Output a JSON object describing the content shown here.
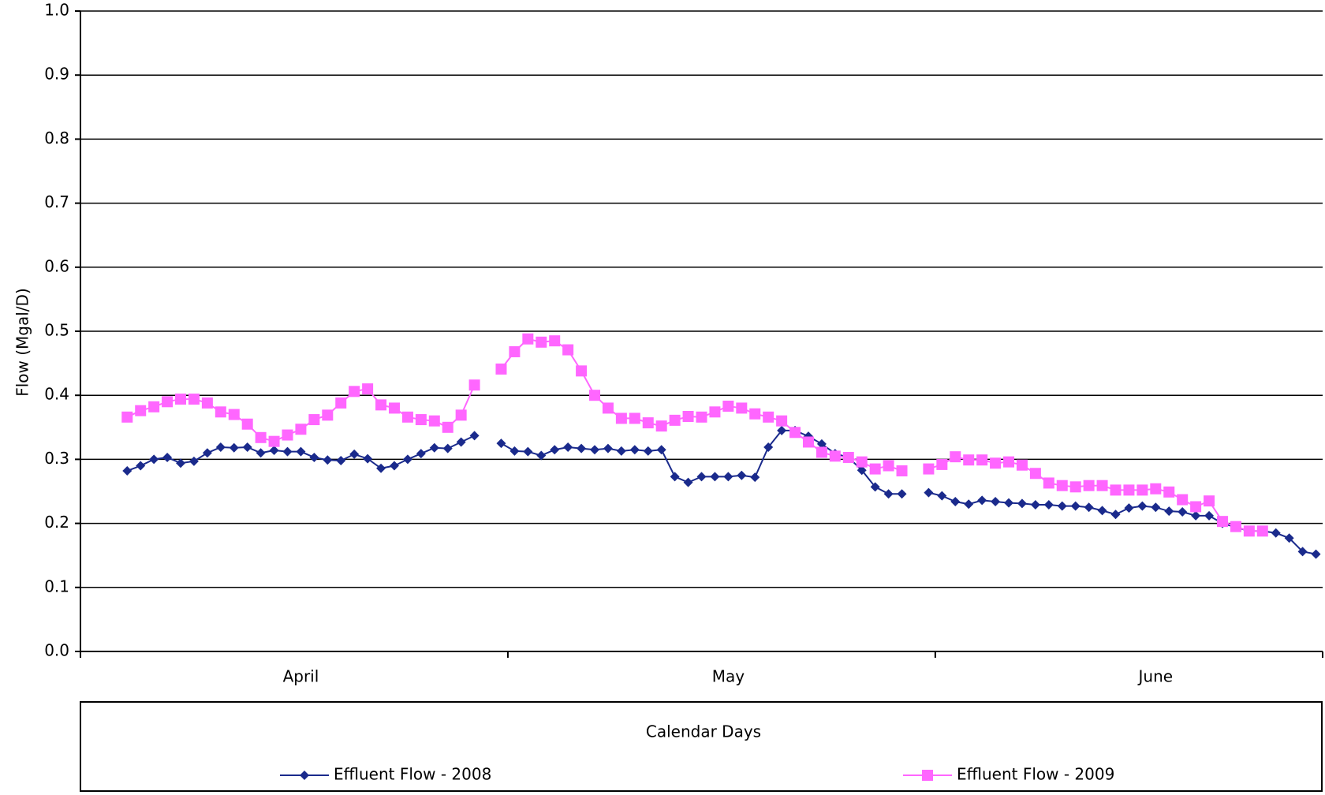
{
  "chart_data": {
    "type": "line",
    "x_label": "Calendar Days",
    "y_label": "Flow (Mgal/D)",
    "categories": [
      null,
      null,
      null,
      null,
      null,
      null,
      null,
      null,
      null,
      null,
      null,
      null,
      null,
      null,
      null,
      null,
      "April",
      null,
      null,
      null,
      null,
      null,
      null,
      null,
      null,
      null,
      null,
      null,
      null,
      null,
      null,
      null,
      null,
      null,
      null,
      null,
      null,
      null,
      null,
      null,
      null,
      null,
      null,
      null,
      null,
      null,
      null,
      null,
      "May",
      null,
      null,
      null,
      null,
      null,
      null,
      null,
      null,
      null,
      null,
      null,
      null,
      null,
      null,
      null,
      null,
      null,
      null,
      null,
      null,
      null,
      null,
      null,
      null,
      null,
      null,
      null,
      null,
      null,
      null,
      null,
      "June",
      null,
      null,
      null,
      null,
      null,
      null,
      null,
      null,
      null,
      null,
      null,
      null
    ],
    "series": [
      {
        "name": "Effluent Flow - 2008",
        "color": "#1a2a8c",
        "marker": "diamond",
        "values": [
          null,
          null,
          null,
          0.282,
          0.29,
          0.3,
          0.303,
          0.294,
          0.297,
          0.31,
          0.319,
          0.318,
          0.319,
          0.31,
          0.314,
          0.312,
          0.312,
          0.303,
          0.299,
          0.298,
          0.308,
          0.301,
          0.286,
          0.29,
          0.3,
          0.309,
          0.318,
          0.317,
          0.327,
          0.337,
          null,
          0.325,
          0.313,
          0.312,
          0.306,
          0.315,
          0.319,
          0.317,
          0.315,
          0.317,
          0.313,
          0.315,
          0.313,
          0.315,
          0.273,
          0.264,
          0.273,
          0.273,
          0.273,
          0.275,
          0.272,
          0.319,
          0.345,
          0.345,
          0.336,
          0.324,
          0.309,
          0.303,
          0.283,
          0.257,
          0.246,
          0.246,
          null,
          0.248,
          0.243,
          0.234,
          0.23,
          0.236,
          0.234,
          0.232,
          0.231,
          0.229,
          0.229,
          0.227,
          0.227,
          0.225,
          0.22,
          0.214,
          0.224,
          0.227,
          0.225,
          0.219,
          0.218,
          0.212,
          0.212,
          0.2,
          0.194,
          0.188,
          0.188,
          0.185,
          0.177,
          0.156,
          0.152
        ]
      },
      {
        "name": "Effluent Flow - 2009",
        "color": "#ff66ff",
        "marker": "square",
        "values": [
          null,
          null,
          null,
          0.366,
          0.376,
          0.382,
          0.39,
          0.394,
          0.394,
          0.388,
          0.374,
          0.37,
          0.355,
          0.334,
          0.328,
          0.338,
          0.347,
          0.362,
          0.369,
          0.388,
          0.406,
          0.41,
          0.385,
          0.38,
          0.366,
          0.362,
          0.36,
          0.35,
          0.369,
          0.416,
          null,
          0.441,
          0.468,
          0.488,
          0.483,
          0.485,
          0.471,
          0.438,
          0.4,
          0.38,
          0.364,
          0.364,
          0.357,
          0.352,
          0.361,
          0.367,
          0.366,
          0.374,
          0.383,
          0.38,
          0.371,
          0.366,
          0.36,
          0.342,
          0.327,
          0.311,
          0.305,
          0.303,
          0.296,
          0.285,
          0.29,
          0.282,
          null,
          0.285,
          0.292,
          0.304,
          0.299,
          0.299,
          0.294,
          0.296,
          0.291,
          0.278,
          0.263,
          0.259,
          0.257,
          0.259,
          0.259,
          0.252,
          0.252,
          0.252,
          0.254,
          0.249,
          0.237,
          0.226,
          0.235,
          0.203,
          0.195,
          0.188,
          0.188,
          null,
          null,
          null,
          null
        ]
      }
    ],
    "ylim": [
      0,
      1
    ],
    "yticks": [
      {
        "value": 0,
        "label": "0.0"
      },
      0.1,
      0.2,
      0.3,
      0.4,
      0.5,
      0.6,
      0.7,
      0.8,
      0.9,
      {
        "value": 1,
        "label": "1.0"
      }
    ],
    "grid": true,
    "legend": "bottom"
  }
}
